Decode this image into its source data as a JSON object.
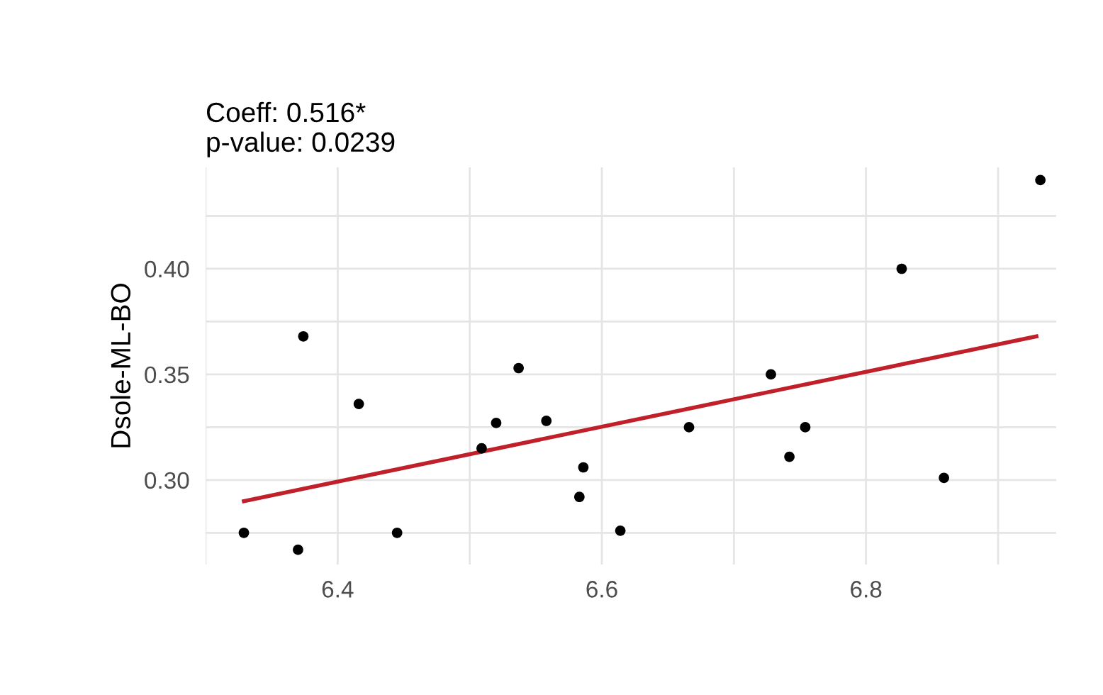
{
  "chart_data": {
    "type": "scatter",
    "title": "Coeff: 0.516*\np-value: 0.0239",
    "ylabel": "Dsole-ML-BO",
    "x": [
      6.329,
      6.37,
      6.374,
      6.416,
      6.445,
      6.509,
      6.52,
      6.537,
      6.558,
      6.583,
      6.586,
      6.614,
      6.666,
      6.728,
      6.742,
      6.754,
      6.827,
      6.859,
      6.932
    ],
    "series": [
      {
        "color": "#000000",
        "marker": "circle",
        "values": [
          0.275,
          0.267,
          0.368,
          0.336,
          0.275,
          0.315,
          0.327,
          0.353,
          0.328,
          0.292,
          0.306,
          0.276,
          0.325,
          0.35,
          0.311,
          0.325,
          0.4,
          0.301,
          0.442
        ]
      },
      {
        "type": "line",
        "color": "#c0202a",
        "x": [
          6.329,
          6.929
        ],
        "values": [
          0.29,
          0.368
        ]
      }
    ],
    "xlim": [
      6.3,
      6.944
    ],
    "ylim": [
      0.26,
      0.448
    ],
    "xticks": [
      {
        "value": 6.3,
        "label": null
      },
      6.4,
      {
        "value": 6.5,
        "label": null
      },
      6.6,
      {
        "value": 6.7,
        "label": null
      },
      6.8,
      {
        "value": 6.9,
        "label": null
      }
    ],
    "yticks": [
      {
        "value": 0.275,
        "label": null
      },
      {
        "value": 0.3,
        "label": "0.30"
      },
      {
        "value": 0.325,
        "label": null
      },
      {
        "value": 0.35,
        "label": "0.35"
      },
      {
        "value": 0.375,
        "label": null
      },
      {
        "value": 0.4,
        "label": "0.40"
      },
      {
        "value": 0.425,
        "label": null
      }
    ],
    "grid": true
  }
}
